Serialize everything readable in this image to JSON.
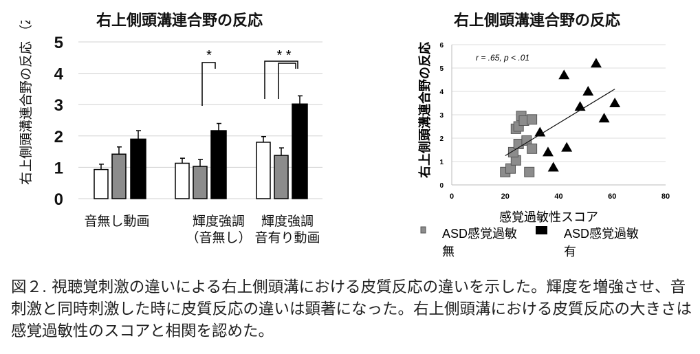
{
  "chart_data": [
    {
      "type": "bar",
      "title": "右上側頭溝連合野の反応",
      "ylabel": "右上側頭溝連合野の反応 （Z-score）",
      "ylim": [
        0,
        5
      ],
      "yticks": [
        0,
        1,
        2,
        3,
        4,
        5
      ],
      "categories": [
        "音無し動画",
        "輝度強調\n（音無し）",
        "輝度強調\n音有り動画"
      ],
      "category_lines": [
        [
          "音無し動画"
        ],
        [
          "輝度強調",
          "（音無し）"
        ],
        [
          "輝度強調",
          "音有り動画"
        ]
      ],
      "series": [
        {
          "name": "white",
          "color": "#ffffff",
          "values": [
            0.93,
            1.13,
            1.8
          ],
          "errors": [
            0.17,
            0.16,
            0.18
          ]
        },
        {
          "name": "gray",
          "color": "#8c8c8c",
          "values": [
            1.42,
            1.03,
            1.38
          ],
          "errors": [
            0.23,
            0.22,
            0.24
          ]
        },
        {
          "name": "black",
          "color": "#000000",
          "values": [
            1.9,
            2.17,
            3.02
          ],
          "errors": [
            0.27,
            0.23,
            0.26
          ]
        }
      ],
      "significance": [
        {
          "group": 1,
          "label": "*"
        },
        {
          "group": 2,
          "label": "* *"
        }
      ],
      "grid": true
    },
    {
      "type": "scatter",
      "title": "右上側頭溝連合野の反応",
      "xlabel": "感覚過敏性スコア",
      "ylabel": "右上側頭溝連合野の反応",
      "xlim": [
        0,
        80
      ],
      "ylim": [
        0,
        6
      ],
      "xticks": [
        0,
        20,
        40,
        60,
        80
      ],
      "yticks": [
        0,
        1,
        2,
        3,
        4,
        5,
        6
      ],
      "annotation": "r = .65, p < .01",
      "series": [
        {
          "name": "ASD感覚過敏無",
          "legend_lines": [
            "ASD感覚過敏",
            "無"
          ],
          "marker": "square",
          "color": "#8c8c8c",
          "points": [
            [
              20,
              0.55
            ],
            [
              22,
              0.7
            ],
            [
              24,
              1.05
            ],
            [
              23,
              1.4
            ],
            [
              25,
              1.75
            ],
            [
              28,
              1.9
            ],
            [
              30,
              1.55
            ],
            [
              29,
              0.55
            ],
            [
              24,
              2.4
            ],
            [
              25,
              2.5
            ],
            [
              26,
              2.95
            ],
            [
              27,
              2.75
            ],
            [
              30,
              2.8
            ]
          ]
        },
        {
          "name": "ASD感覚過敏有",
          "legend_lines": [
            "ASD感覚過敏",
            "有"
          ],
          "marker": "triangle",
          "color": "#000000",
          "points": [
            [
              33,
              2.25
            ],
            [
              36,
              1.4
            ],
            [
              38,
              0.75
            ],
            [
              42,
              4.7
            ],
            [
              43,
              1.6
            ],
            [
              48,
              3.35
            ],
            [
              51,
              4.0
            ],
            [
              54,
              5.2
            ],
            [
              57,
              2.85
            ],
            [
              61,
              3.5
            ]
          ]
        }
      ],
      "trendline": [
        [
          20,
          1.25
        ],
        [
          61,
          4.1
        ]
      ],
      "legend": "bottom",
      "grid": true
    }
  ],
  "caption": "図２. 視聴覚刺激の違いによる右上側頭溝における皮質反応の違いを示した。輝度を増強させ、音刺激と同時刺激した時に皮質反応の違いは顕著になった。右上側頭溝における皮質反応の大きさは感覚過敏性のスコアと相関を認めた。"
}
